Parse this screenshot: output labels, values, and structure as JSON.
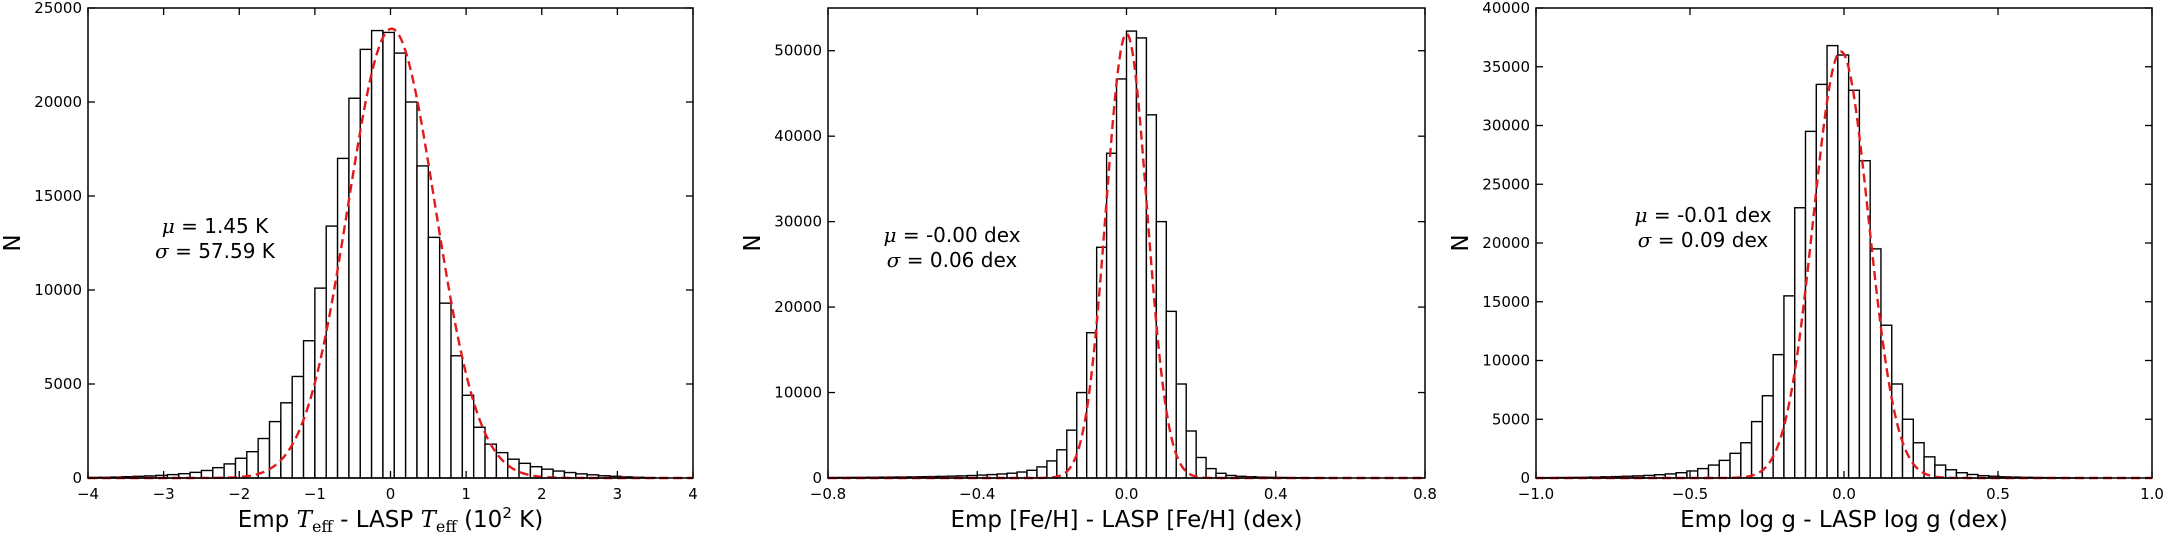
{
  "chart_data": [
    {
      "type": "bar",
      "subtype": "histogram",
      "xlabel": "Emp T_eff - LASP T_eff (10² K)",
      "xlabel_parts": {
        "pre": "Emp ",
        "sym1": "T",
        "sub1": "eff",
        "mid": " - LASP ",
        "sym2": "T",
        "sub2": "eff",
        "post_open": " (10",
        "sup": "2",
        "post_close": " K)"
      },
      "ylabel": "N",
      "xlim": [
        -4,
        4
      ],
      "ylim": [
        0,
        25000
      ],
      "xticks": [
        -4,
        -3,
        -2,
        -1,
        0,
        1,
        2,
        3,
        4
      ],
      "yticks": [
        0,
        5000,
        10000,
        15000,
        20000,
        25000
      ],
      "xtick_labels": [
        "−4",
        "−3",
        "−2",
        "−1",
        "0",
        "1",
        "2",
        "3",
        "4"
      ],
      "ytick_labels": [
        "0",
        "5000",
        "10000",
        "15000",
        "20000",
        "25000"
      ],
      "bin_edges": [
        -4.0,
        -3.85,
        -3.7,
        -3.55,
        -3.4,
        -3.25,
        -3.1,
        -2.95,
        -2.8,
        -2.65,
        -2.5,
        -2.35,
        -2.2,
        -2.05,
        -1.9,
        -1.75,
        -1.6,
        -1.45,
        -1.3,
        -1.15,
        -1.0,
        -0.85,
        -0.7,
        -0.55,
        -0.4,
        -0.25,
        -0.1,
        0.05,
        0.2,
        0.35,
        0.5,
        0.65,
        0.8,
        0.95,
        1.1,
        1.25,
        1.4,
        1.55,
        1.7,
        1.85,
        2.0,
        2.15,
        2.3,
        2.45,
        2.6,
        2.75,
        2.9,
        3.05,
        3.2,
        3.35,
        3.5
      ],
      "counts": [
        30,
        40,
        50,
        70,
        90,
        110,
        140,
        180,
        230,
        300,
        400,
        550,
        750,
        1050,
        1400,
        2100,
        3000,
        4000,
        5400,
        7300,
        10100,
        13400,
        17000,
        20200,
        22800,
        23800,
        23700,
        22600,
        20000,
        16600,
        12800,
        9300,
        6500,
        4400,
        2700,
        1800,
        1350,
        1000,
        780,
        600,
        470,
        370,
        290,
        220,
        170,
        120,
        90,
        60,
        40,
        20
      ],
      "fit": {
        "kind": "gaussian",
        "mu": 0.0145,
        "sigma": 0.5759,
        "amplitude": 23900
      },
      "annotation": {
        "mu_symbol": "μ",
        "mu_text": " = 1.45 K",
        "sigma_symbol": "σ",
        "sigma_text": " = 57.59 K"
      }
    },
    {
      "type": "bar",
      "subtype": "histogram",
      "xlabel": "Emp [Fe/H] - LASP [Fe/H] (dex)",
      "ylabel": "N",
      "xlim": [
        -0.8,
        0.8
      ],
      "ylim": [
        0,
        55000
      ],
      "xticks": [
        -0.8,
        -0.4,
        0.0,
        0.4,
        0.8
      ],
      "yticks": [
        0,
        10000,
        20000,
        30000,
        40000,
        50000
      ],
      "xtick_labels": [
        "−0.8",
        "−0.4",
        "0.0",
        "0.4",
        "0.8"
      ],
      "ytick_labels": [
        "0",
        "10000",
        "20000",
        "30000",
        "40000",
        "50000"
      ],
      "bin_edges": [
        -0.8,
        -0.7733,
        -0.7467,
        -0.72,
        -0.6933,
        -0.6667,
        -0.64,
        -0.6133,
        -0.5867,
        -0.56,
        -0.5333,
        -0.5067,
        -0.48,
        -0.4533,
        -0.4267,
        -0.4,
        -0.3733,
        -0.3467,
        -0.32,
        -0.2933,
        -0.2667,
        -0.24,
        -0.2133,
        -0.1867,
        -0.16,
        -0.1333,
        -0.1067,
        -0.08,
        -0.0533,
        -0.0267,
        0.0,
        0.0267,
        0.0533,
        0.08,
        0.1067,
        0.1333,
        0.16,
        0.1867,
        0.2133,
        0.24,
        0.2667,
        0.2933,
        0.32,
        0.3467,
        0.3733,
        0.4,
        0.4267,
        0.4533,
        0.48,
        0.5067,
        0.5333
      ],
      "counts": [
        50,
        60,
        70,
        80,
        90,
        100,
        110,
        120,
        130,
        150,
        170,
        190,
        220,
        250,
        290,
        340,
        400,
        470,
        560,
        700,
        900,
        1300,
        2000,
        3300,
        5600,
        10000,
        17000,
        27000,
        38000,
        46700,
        52300,
        51500,
        42500,
        30000,
        19500,
        11000,
        5500,
        2400,
        1100,
        550,
        300,
        200,
        150,
        110,
        80,
        60,
        40,
        30,
        20,
        10
      ],
      "fit": {
        "kind": "gaussian",
        "mu": 0.0,
        "sigma": 0.055,
        "amplitude": 52000
      },
      "annotation": {
        "mu_symbol": "μ",
        "mu_text": " = -0.00 dex",
        "sigma_symbol": "σ",
        "sigma_text": " = 0.06 dex"
      }
    },
    {
      "type": "bar",
      "subtype": "histogram",
      "xlabel": "Emp log g - LASP log g (dex)",
      "ylabel": "N",
      "xlim": [
        -1.0,
        1.0
      ],
      "ylim": [
        0,
        40000
      ],
      "xticks": [
        -1.0,
        -0.5,
        0.0,
        0.5,
        1.0
      ],
      "yticks": [
        0,
        5000,
        10000,
        15000,
        20000,
        25000,
        30000,
        35000,
        40000
      ],
      "xtick_labels": [
        "−1.0",
        "−0.5",
        "0.0",
        "0.5",
        "1.0"
      ],
      "ytick_labels": [
        "0",
        "5000",
        "10000",
        "15000",
        "20000",
        "25000",
        "30000",
        "35000",
        "40000"
      ],
      "bin_edges": [
        -1.0,
        -0.965,
        -0.93,
        -0.895,
        -0.86,
        -0.825,
        -0.79,
        -0.755,
        -0.72,
        -0.685,
        -0.65,
        -0.615,
        -0.58,
        -0.545,
        -0.51,
        -0.475,
        -0.44,
        -0.405,
        -0.37,
        -0.335,
        -0.3,
        -0.265,
        -0.23,
        -0.195,
        -0.16,
        -0.125,
        -0.09,
        -0.055,
        -0.02,
        0.015,
        0.05,
        0.085,
        0.12,
        0.155,
        0.19,
        0.225,
        0.26,
        0.295,
        0.33,
        0.365,
        0.4,
        0.435,
        0.47,
        0.505,
        0.54,
        0.575,
        0.61,
        0.645,
        0.68,
        0.715,
        0.75
      ],
      "counts": [
        20,
        30,
        40,
        50,
        60,
        80,
        100,
        120,
        150,
        180,
        220,
        280,
        350,
        450,
        600,
        800,
        1100,
        1500,
        2100,
        3000,
        4800,
        7000,
        10500,
        15500,
        23000,
        29500,
        33500,
        36800,
        36000,
        33000,
        27000,
        19500,
        13000,
        8000,
        5000,
        3000,
        1800,
        1100,
        700,
        450,
        300,
        200,
        150,
        100,
        80,
        60,
        40,
        30,
        20,
        10
      ],
      "fit": {
        "kind": "gaussian",
        "mu": -0.01,
        "sigma": 0.09,
        "amplitude": 36300
      },
      "annotation": {
        "mu_symbol": "μ",
        "mu_text": " = -0.01 dex",
        "sigma_symbol": "σ",
        "sigma_text": " = 0.09 dex"
      }
    }
  ]
}
